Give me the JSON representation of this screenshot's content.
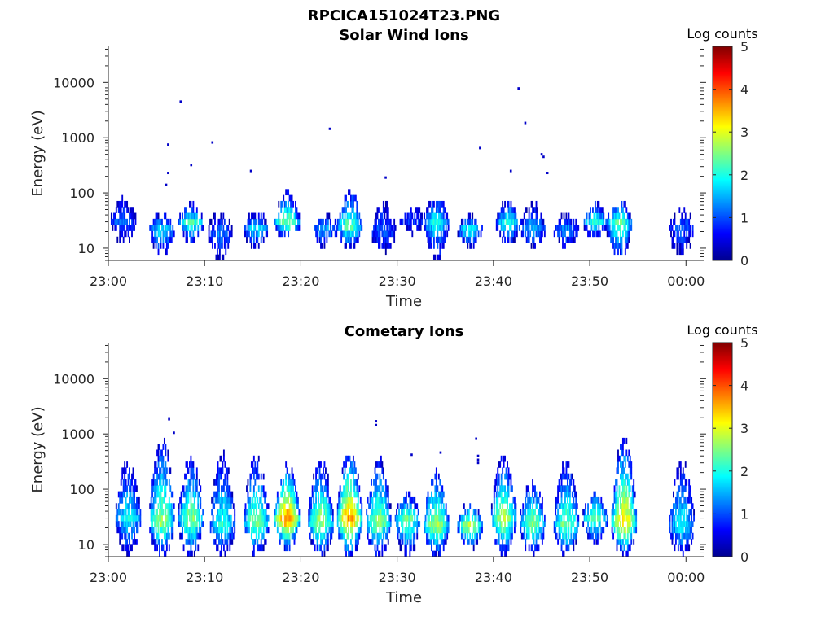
{
  "figure": {
    "title": "RPCICA151024T23.PNG"
  },
  "chart_data": [
    {
      "type": "heatmap",
      "title": "Solar Wind Ions",
      "xlabel": "Time",
      "ylabel": "Energy (eV)",
      "x_ticks": [
        "23:00",
        "23:10",
        "23:20",
        "23:30",
        "23:40",
        "23:50",
        "00:00"
      ],
      "x_range_minutes": [
        0,
        61.5
      ],
      "y_scale": "log",
      "y_ticks": [
        "10",
        "100",
        "1000",
        "10000"
      ],
      "ylim": [
        6,
        45000
      ],
      "colorbar": {
        "label": "Log counts",
        "range": [
          0,
          5
        ],
        "ticks": [
          "0",
          "1",
          "2",
          "3",
          "4",
          "5"
        ],
        "colormap": "jet"
      },
      "bursts": [
        {
          "t": 1.5,
          "peak": 30,
          "lo": 12,
          "hi": 90,
          "intensity": 1.2
        },
        {
          "t": 5.5,
          "peak": 22,
          "lo": 7,
          "hi": 45,
          "intensity": 1.8
        },
        {
          "t": 8.5,
          "peak": 30,
          "lo": 12,
          "hi": 65,
          "intensity": 2.2
        },
        {
          "t": 11.5,
          "peak": 20,
          "lo": 6,
          "hi": 45,
          "intensity": 1.3
        },
        {
          "t": 15.3,
          "peak": 22,
          "lo": 10,
          "hi": 48,
          "intensity": 1.8
        },
        {
          "t": 18.5,
          "peak": 28,
          "lo": 15,
          "hi": 110,
          "intensity": 2.6
        },
        {
          "t": 22.5,
          "peak": 22,
          "lo": 10,
          "hi": 45,
          "intensity": 1.5
        },
        {
          "t": 25.0,
          "peak": 25,
          "lo": 10,
          "hi": 120,
          "intensity": 2.4
        },
        {
          "t": 28.5,
          "peak": 20,
          "lo": 8,
          "hi": 70,
          "intensity": 1.2
        },
        {
          "t": 31.5,
          "peak": 32,
          "lo": 18,
          "hi": 60,
          "intensity": 1.0
        },
        {
          "t": 34.0,
          "peak": 30,
          "lo": 6,
          "hi": 90,
          "intensity": 1.9
        },
        {
          "t": 37.5,
          "peak": 22,
          "lo": 10,
          "hi": 40,
          "intensity": 2.0
        },
        {
          "t": 41.5,
          "peak": 28,
          "lo": 12,
          "hi": 80,
          "intensity": 2.1
        },
        {
          "t": 44.0,
          "peak": 22,
          "lo": 10,
          "hi": 70,
          "intensity": 1.6
        },
        {
          "t": 47.5,
          "peak": 22,
          "lo": 10,
          "hi": 42,
          "intensity": 1.4
        },
        {
          "t": 50.5,
          "peak": 30,
          "lo": 15,
          "hi": 75,
          "intensity": 2.0
        },
        {
          "t": 53.0,
          "peak": 28,
          "lo": 6,
          "hi": 80,
          "intensity": 2.4
        },
        {
          "t": 59.5,
          "peak": 25,
          "lo": 6,
          "hi": 55,
          "intensity": 1.1
        }
      ],
      "scattered_points": [
        {
          "t": 6.2,
          "e": 750
        },
        {
          "t": 6.2,
          "e": 230
        },
        {
          "t": 6.0,
          "e": 140
        },
        {
          "t": 7.5,
          "e": 4500
        },
        {
          "t": 8.6,
          "e": 320
        },
        {
          "t": 10.8,
          "e": 820
        },
        {
          "t": 14.8,
          "e": 250
        },
        {
          "t": 23.0,
          "e": 1450
        },
        {
          "t": 28.8,
          "e": 190
        },
        {
          "t": 38.6,
          "e": 650
        },
        {
          "t": 41.8,
          "e": 250
        },
        {
          "t": 42.6,
          "e": 7800
        },
        {
          "t": 43.3,
          "e": 1850
        },
        {
          "t": 45.0,
          "e": 500
        },
        {
          "t": 45.2,
          "e": 450
        },
        {
          "t": 45.6,
          "e": 230
        }
      ]
    },
    {
      "type": "heatmap",
      "title": "Cometary Ions",
      "xlabel": "Time",
      "ylabel": "Energy (eV)",
      "x_ticks": [
        "23:00",
        "23:10",
        "23:20",
        "23:30",
        "23:40",
        "23:50",
        "00:00"
      ],
      "x_range_minutes": [
        0,
        61.5
      ],
      "y_scale": "log",
      "y_ticks": [
        "10",
        "100",
        "1000",
        "10000"
      ],
      "ylim": [
        6,
        45000
      ],
      "colorbar": {
        "label": "Log counts",
        "range": [
          0,
          5
        ],
        "ticks": [
          "0",
          "1",
          "2",
          "3",
          "4",
          "5"
        ],
        "colormap": "jet"
      },
      "bursts": [
        {
          "t": 2.0,
          "peak": 30,
          "lo": 6,
          "hi": 350,
          "intensity": 1.9
        },
        {
          "t": 5.5,
          "peak": 25,
          "lo": 6,
          "hi": 900,
          "intensity": 2.7
        },
        {
          "t": 8.5,
          "peak": 28,
          "lo": 6,
          "hi": 400,
          "intensity": 2.6
        },
        {
          "t": 11.8,
          "peak": 22,
          "lo": 6,
          "hi": 500,
          "intensity": 2.1
        },
        {
          "t": 15.3,
          "peak": 25,
          "lo": 6,
          "hi": 400,
          "intensity": 2.6
        },
        {
          "t": 18.5,
          "peak": 28,
          "lo": 8,
          "hi": 300,
          "intensity": 3.8
        },
        {
          "t": 22.0,
          "peak": 25,
          "lo": 6,
          "hi": 350,
          "intensity": 2.7
        },
        {
          "t": 25.0,
          "peak": 28,
          "lo": 6,
          "hi": 500,
          "intensity": 3.7
        },
        {
          "t": 28.0,
          "peak": 25,
          "lo": 6,
          "hi": 400,
          "intensity": 2.6
        },
        {
          "t": 31.0,
          "peak": 28,
          "lo": 6,
          "hi": 90,
          "intensity": 2.5
        },
        {
          "t": 34.0,
          "peak": 22,
          "lo": 6,
          "hi": 250,
          "intensity": 2.8
        },
        {
          "t": 37.5,
          "peak": 22,
          "lo": 8,
          "hi": 60,
          "intensity": 2.9
        },
        {
          "t": 41.0,
          "peak": 30,
          "lo": 6,
          "hi": 400,
          "intensity": 2.8
        },
        {
          "t": 44.0,
          "peak": 25,
          "lo": 6,
          "hi": 150,
          "intensity": 2.6
        },
        {
          "t": 47.5,
          "peak": 22,
          "lo": 6,
          "hi": 350,
          "intensity": 2.5
        },
        {
          "t": 50.5,
          "peak": 30,
          "lo": 10,
          "hi": 100,
          "intensity": 2.4
        },
        {
          "t": 53.5,
          "peak": 25,
          "lo": 6,
          "hi": 900,
          "intensity": 3.3
        },
        {
          "t": 59.5,
          "peak": 22,
          "lo": 6,
          "hi": 350,
          "intensity": 1.9
        }
      ],
      "scattered_points": [
        {
          "t": 6.3,
          "e": 1850
        },
        {
          "t": 6.8,
          "e": 1050
        },
        {
          "t": 27.8,
          "e": 1700
        },
        {
          "t": 27.8,
          "e": 1450
        },
        {
          "t": 31.5,
          "e": 420
        },
        {
          "t": 34.5,
          "e": 460
        },
        {
          "t": 38.2,
          "e": 820
        },
        {
          "t": 38.4,
          "e": 400
        },
        {
          "t": 38.4,
          "e": 340
        },
        {
          "t": 38.4,
          "e": 300
        }
      ]
    }
  ]
}
